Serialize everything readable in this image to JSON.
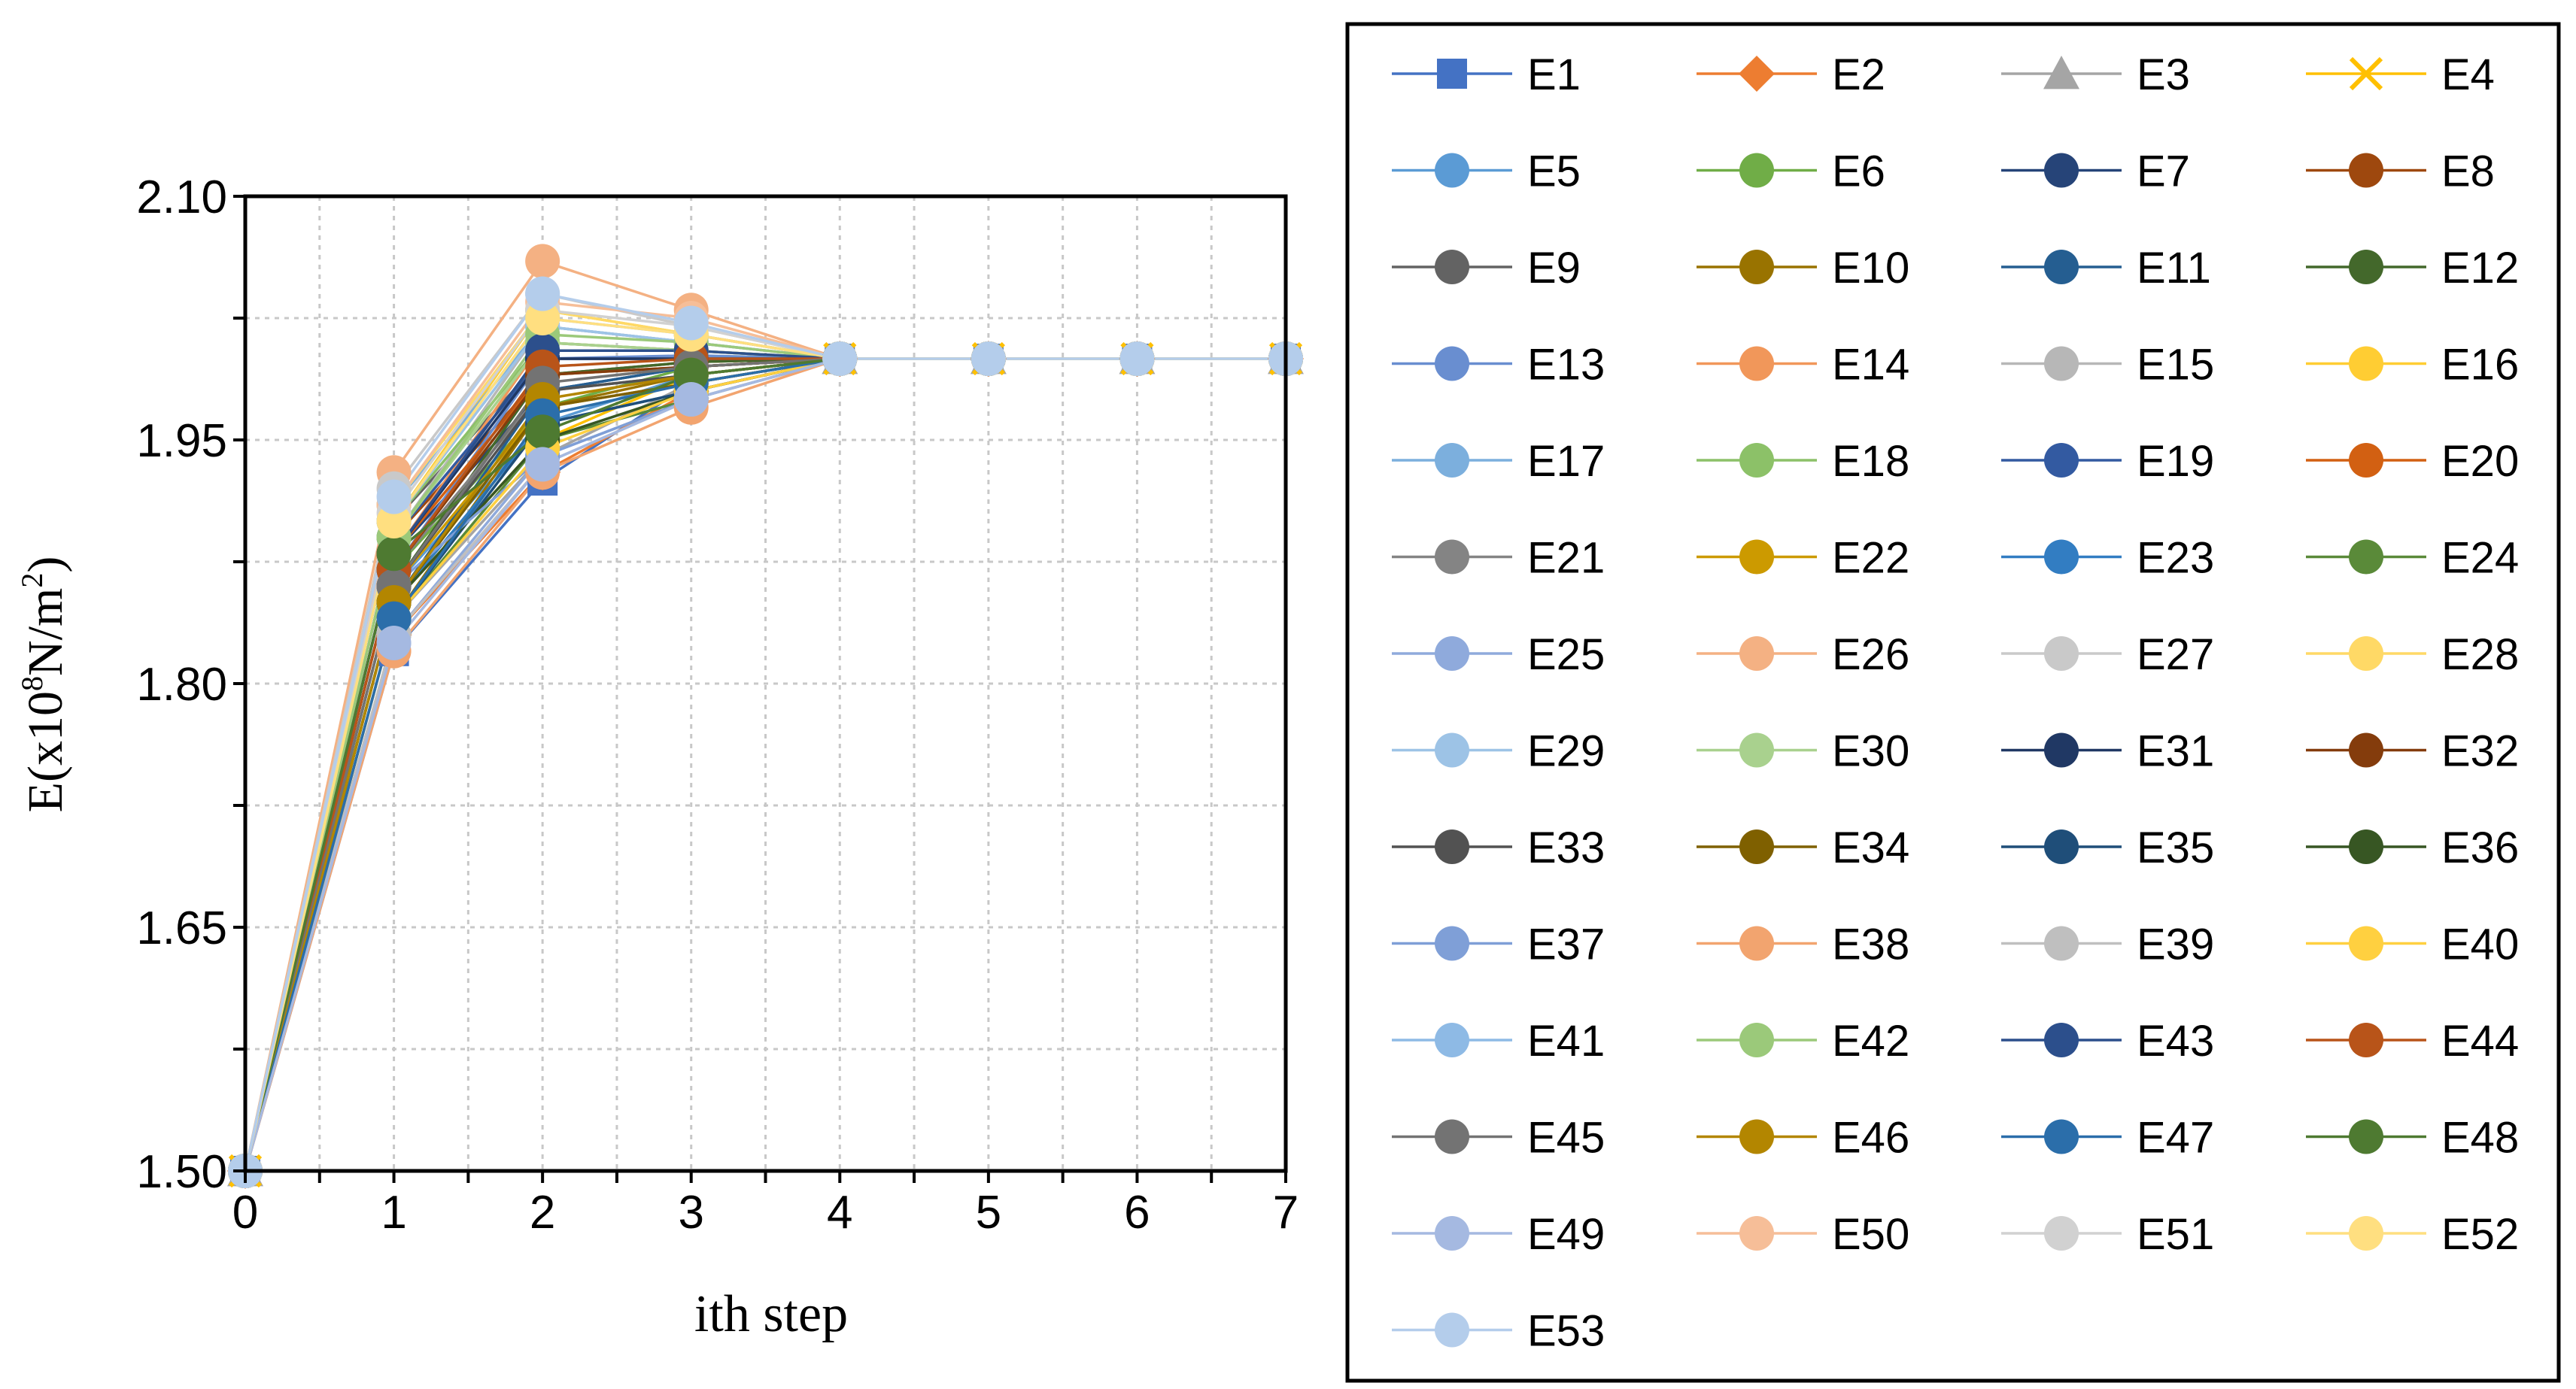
{
  "chart_data": {
    "type": "line",
    "title": "",
    "xlabel": "ith step",
    "ylabel": "E(x10",
    "ylabel_exponent": "8",
    "ylabel_units": "N/m",
    "ylabel_units_exponent": "2",
    "ylabel_close": ")",
    "xlim": [
      0,
      7
    ],
    "ylim": [
      1.5,
      2.1
    ],
    "x": [
      0,
      1,
      2,
      3,
      4,
      5,
      6,
      7
    ],
    "x_ticks": [
      "0",
      "1",
      "2",
      "3",
      "4",
      "5",
      "6",
      "7"
    ],
    "y_ticks": [
      1.5,
      1.65,
      1.8,
      1.95,
      2.1
    ],
    "y_tick_labels": [
      "1.50",
      "1.65",
      "1.80",
      "1.95",
      "2.10"
    ],
    "y_minor_ticks": [
      1.575,
      1.725,
      1.875,
      2.025
    ],
    "grid": true,
    "legend_position": "right",
    "series": [
      {
        "name": "E1",
        "color": "#4472C4",
        "marker": "square",
        "values": [
          1.5,
          1.82,
          1.925,
          1.985,
          2.0,
          2.0,
          2.0,
          2.0
        ]
      },
      {
        "name": "E2",
        "color": "#ED7D31",
        "marker": "diamond",
        "values": [
          1.5,
          1.83,
          1.93,
          1.98,
          2.0,
          2.0,
          2.0,
          2.0
        ]
      },
      {
        "name": "E3",
        "color": "#A5A5A5",
        "marker": "triangle",
        "values": [
          1.5,
          1.84,
          1.94,
          1.985,
          2.0,
          2.0,
          2.0,
          2.0
        ]
      },
      {
        "name": "E4",
        "color": "#FFC000",
        "marker": "x",
        "values": [
          1.5,
          1.85,
          1.95,
          1.99,
          2.0,
          2.0,
          2.0,
          2.0
        ]
      },
      {
        "name": "E5",
        "color": "#5B9BD5",
        "marker": "circle",
        "values": [
          1.5,
          1.86,
          1.96,
          1.99,
          2.0,
          2.0,
          2.0,
          2.0
        ]
      },
      {
        "name": "E6",
        "color": "#70AD47",
        "marker": "circle",
        "values": [
          1.5,
          1.87,
          1.97,
          1.995,
          2.0,
          2.0,
          2.0,
          2.0
        ]
      },
      {
        "name": "E7",
        "color": "#264478",
        "marker": "circle",
        "values": [
          1.5,
          1.88,
          1.98,
          1.995,
          2.0,
          2.0,
          2.0,
          2.0
        ]
      },
      {
        "name": "E8",
        "color": "#9E480E",
        "marker": "circle",
        "values": [
          1.5,
          1.89,
          1.99,
          1.998,
          2.0,
          2.0,
          2.0,
          2.0
        ]
      },
      {
        "name": "E9",
        "color": "#636363",
        "marker": "circle",
        "values": [
          1.5,
          1.9,
          2.0,
          2.0,
          2.0,
          2.0,
          2.0,
          2.0
        ]
      },
      {
        "name": "E10",
        "color": "#997300",
        "marker": "circle",
        "values": [
          1.5,
          1.84,
          1.97,
          1.99,
          2.0,
          2.0,
          2.0,
          2.0
        ]
      },
      {
        "name": "E11",
        "color": "#255E91",
        "marker": "circle",
        "values": [
          1.5,
          1.85,
          1.98,
          1.995,
          2.0,
          2.0,
          2.0,
          2.0
        ]
      },
      {
        "name": "E12",
        "color": "#43682B",
        "marker": "circle",
        "values": [
          1.5,
          1.86,
          1.99,
          1.998,
          2.0,
          2.0,
          2.0,
          2.0
        ]
      },
      {
        "name": "E13",
        "color": "#698ED0",
        "marker": "circle",
        "values": [
          1.5,
          1.87,
          2.0,
          2.002,
          2.0,
          2.0,
          2.0,
          2.0
        ]
      },
      {
        "name": "E14",
        "color": "#F1975A",
        "marker": "circle",
        "values": [
          1.5,
          1.88,
          2.01,
          2.005,
          2.0,
          2.0,
          2.0,
          2.0
        ]
      },
      {
        "name": "E15",
        "color": "#B7B7B7",
        "marker": "circle",
        "values": [
          1.5,
          1.89,
          2.02,
          2.01,
          2.0,
          2.0,
          2.0,
          2.0
        ]
      },
      {
        "name": "E16",
        "color": "#FFCD33",
        "marker": "circle",
        "values": [
          1.5,
          1.9,
          2.03,
          2.015,
          2.0,
          2.0,
          2.0,
          2.0
        ]
      },
      {
        "name": "E17",
        "color": "#7CAFDD",
        "marker": "circle",
        "values": [
          1.5,
          1.91,
          2.02,
          2.01,
          2.0,
          2.0,
          2.0,
          2.0
        ]
      },
      {
        "name": "E18",
        "color": "#8CC168",
        "marker": "circle",
        "values": [
          1.5,
          1.9,
          2.01,
          2.005,
          2.0,
          2.0,
          2.0,
          2.0
        ]
      },
      {
        "name": "E19",
        "color": "#335AA1",
        "marker": "circle",
        "values": [
          1.5,
          1.89,
          2.0,
          2.0,
          2.0,
          2.0,
          2.0,
          2.0
        ]
      },
      {
        "name": "E20",
        "color": "#D26012",
        "marker": "circle",
        "values": [
          1.5,
          1.88,
          1.99,
          1.995,
          2.0,
          2.0,
          2.0,
          2.0
        ]
      },
      {
        "name": "E21",
        "color": "#848484",
        "marker": "circle",
        "values": [
          1.5,
          1.87,
          1.98,
          1.99,
          2.0,
          2.0,
          2.0,
          2.0
        ]
      },
      {
        "name": "E22",
        "color": "#CC9A00",
        "marker": "circle",
        "values": [
          1.5,
          1.86,
          1.97,
          1.985,
          2.0,
          2.0,
          2.0,
          2.0
        ]
      },
      {
        "name": "E23",
        "color": "#327DC2",
        "marker": "circle",
        "values": [
          1.5,
          1.85,
          1.96,
          1.98,
          2.0,
          2.0,
          2.0,
          2.0
        ]
      },
      {
        "name": "E24",
        "color": "#5A8A39",
        "marker": "circle",
        "values": [
          1.5,
          1.84,
          1.95,
          1.975,
          2.0,
          2.0,
          2.0,
          2.0
        ]
      },
      {
        "name": "E25",
        "color": "#8FAADC",
        "marker": "circle",
        "values": [
          1.5,
          1.83,
          1.94,
          1.975,
          2.0,
          2.0,
          2.0,
          2.0
        ]
      },
      {
        "name": "E26",
        "color": "#F4B183",
        "marker": "circle",
        "values": [
          1.5,
          1.93,
          2.06,
          2.03,
          2.0,
          2.0,
          2.0,
          2.0
        ]
      },
      {
        "name": "E27",
        "color": "#C9C9C9",
        "marker": "circle",
        "values": [
          1.5,
          1.92,
          2.04,
          2.02,
          2.0,
          2.0,
          2.0,
          2.0
        ]
      },
      {
        "name": "E28",
        "color": "#FFD966",
        "marker": "circle",
        "values": [
          1.5,
          1.91,
          2.03,
          2.015,
          2.0,
          2.0,
          2.0,
          2.0
        ]
      },
      {
        "name": "E29",
        "color": "#9DC3E6",
        "marker": "circle",
        "values": [
          1.5,
          1.9,
          2.02,
          2.01,
          2.0,
          2.0,
          2.0,
          2.0
        ]
      },
      {
        "name": "E30",
        "color": "#A9D18E",
        "marker": "circle",
        "values": [
          1.5,
          1.89,
          2.01,
          2.005,
          2.0,
          2.0,
          2.0,
          2.0
        ]
      },
      {
        "name": "E31",
        "color": "#203864",
        "marker": "circle",
        "values": [
          1.5,
          1.88,
          2.0,
          2.0,
          2.0,
          2.0,
          2.0,
          2.0
        ]
      },
      {
        "name": "E32",
        "color": "#843C0C",
        "marker": "circle",
        "values": [
          1.5,
          1.87,
          1.99,
          1.995,
          2.0,
          2.0,
          2.0,
          2.0
        ]
      },
      {
        "name": "E33",
        "color": "#525252",
        "marker": "circle",
        "values": [
          1.5,
          1.86,
          1.98,
          1.99,
          2.0,
          2.0,
          2.0,
          2.0
        ]
      },
      {
        "name": "E34",
        "color": "#7F6000",
        "marker": "circle",
        "values": [
          1.5,
          1.85,
          1.97,
          1.985,
          2.0,
          2.0,
          2.0,
          2.0
        ]
      },
      {
        "name": "E35",
        "color": "#1F4E79",
        "marker": "circle",
        "values": [
          1.5,
          1.84,
          1.96,
          1.98,
          2.0,
          2.0,
          2.0,
          2.0
        ]
      },
      {
        "name": "E36",
        "color": "#375623",
        "marker": "circle",
        "values": [
          1.5,
          1.85,
          1.95,
          1.98,
          2.0,
          2.0,
          2.0,
          2.0
        ]
      },
      {
        "name": "E37",
        "color": "#7F9FD7",
        "marker": "circle",
        "values": [
          1.5,
          1.86,
          1.94,
          1.975,
          2.0,
          2.0,
          2.0,
          2.0
        ]
      },
      {
        "name": "E38",
        "color": "#F2A46F",
        "marker": "circle",
        "values": [
          1.5,
          1.82,
          1.93,
          1.97,
          2.0,
          2.0,
          2.0,
          2.0
        ]
      },
      {
        "name": "E39",
        "color": "#BFBFBF",
        "marker": "circle",
        "values": [
          1.5,
          1.83,
          1.935,
          1.975,
          2.0,
          2.0,
          2.0,
          2.0
        ]
      },
      {
        "name": "E40",
        "color": "#FFD040",
        "marker": "circle",
        "values": [
          1.5,
          1.84,
          1.945,
          1.98,
          2.0,
          2.0,
          2.0,
          2.0
        ]
      },
      {
        "name": "E41",
        "color": "#8EBAE5",
        "marker": "circle",
        "values": [
          1.5,
          1.9,
          2.025,
          2.015,
          2.0,
          2.0,
          2.0,
          2.0
        ]
      },
      {
        "name": "E42",
        "color": "#9BC97A",
        "marker": "circle",
        "values": [
          1.5,
          1.89,
          2.015,
          2.01,
          2.0,
          2.0,
          2.0,
          2.0
        ]
      },
      {
        "name": "E43",
        "color": "#2C4F8C",
        "marker": "circle",
        "values": [
          1.5,
          1.88,
          2.005,
          2.005,
          2.0,
          2.0,
          2.0,
          2.0
        ]
      },
      {
        "name": "E44",
        "color": "#B85419",
        "marker": "circle",
        "values": [
          1.5,
          1.87,
          1.995,
          2.0,
          2.0,
          2.0,
          2.0,
          2.0
        ]
      },
      {
        "name": "E45",
        "color": "#737373",
        "marker": "circle",
        "values": [
          1.5,
          1.86,
          1.985,
          1.995,
          2.0,
          2.0,
          2.0,
          2.0
        ]
      },
      {
        "name": "E46",
        "color": "#B38600",
        "marker": "circle",
        "values": [
          1.5,
          1.85,
          1.975,
          1.99,
          2.0,
          2.0,
          2.0,
          2.0
        ]
      },
      {
        "name": "E47",
        "color": "#2B6EAA",
        "marker": "circle",
        "values": [
          1.5,
          1.84,
          1.965,
          1.985,
          2.0,
          2.0,
          2.0,
          2.0
        ]
      },
      {
        "name": "E48",
        "color": "#4E7A31",
        "marker": "circle",
        "values": [
          1.5,
          1.88,
          1.955,
          1.99,
          2.0,
          2.0,
          2.0,
          2.0
        ]
      },
      {
        "name": "E49",
        "color": "#A5B9E1",
        "marker": "circle",
        "values": [
          1.5,
          1.825,
          1.935,
          1.975,
          2.0,
          2.0,
          2.0,
          2.0
        ]
      },
      {
        "name": "E50",
        "color": "#F6BE98",
        "marker": "circle",
        "values": [
          1.5,
          1.91,
          2.035,
          2.025,
          2.0,
          2.0,
          2.0,
          2.0
        ]
      },
      {
        "name": "E51",
        "color": "#D1D1D1",
        "marker": "circle",
        "values": [
          1.5,
          1.905,
          2.03,
          2.02,
          2.0,
          2.0,
          2.0,
          2.0
        ]
      },
      {
        "name": "E52",
        "color": "#FFDF80",
        "marker": "circle",
        "values": [
          1.5,
          1.9,
          2.025,
          2.015,
          2.0,
          2.0,
          2.0,
          2.0
        ]
      },
      {
        "name": "E53",
        "color": "#B4CDEB",
        "marker": "circle",
        "values": [
          1.5,
          1.915,
          2.04,
          2.022,
          2.0,
          2.0,
          2.0,
          2.0
        ]
      }
    ]
  }
}
